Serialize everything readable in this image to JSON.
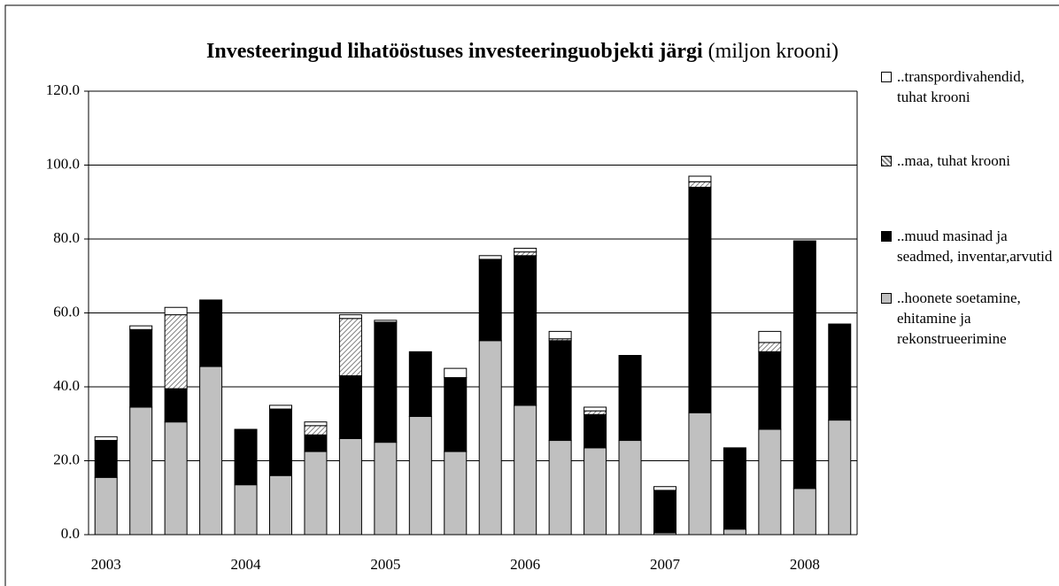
{
  "chart_data": {
    "type": "stacked_bar",
    "title": "Investeeringud lihatööstuses investeeringuobjekti järgi",
    "subtitle": "(miljon krooni)",
    "categories": [
      "2003",
      null,
      null,
      null,
      "2004",
      null,
      null,
      null,
      "2005",
      null,
      null,
      null,
      "2006",
      null,
      null,
      null,
      "2007",
      null,
      null,
      null,
      "2008",
      null
    ],
    "series": [
      {
        "name": "..hoonete soetamine, ehitamine ja rekonstrueerimine",
        "color": "#c0c0c0",
        "values": [
          15.5,
          34.5,
          30.5,
          45.5,
          13.5,
          16,
          22.5,
          26,
          25,
          32,
          22.5,
          52.5,
          35,
          25.5,
          23.5,
          25.5,
          0.5,
          33,
          1.5,
          28.5,
          12.5,
          31
        ]
      },
      {
        "name": "..muud masinad ja seadmed, inventar,arvutid",
        "color": "#000000",
        "values": [
          10,
          21,
          9,
          18,
          15,
          18,
          4.5,
          17,
          32.5,
          17.5,
          20,
          22,
          40.5,
          27,
          9,
          23,
          11.5,
          61,
          22,
          21,
          67,
          26
        ]
      },
      {
        "name": "..maa, tuhat krooni",
        "color": "#808080",
        "pattern": "hatch",
        "values": [
          0,
          0,
          20,
          0,
          0,
          0,
          2.5,
          15.5,
          0,
          0,
          0,
          0,
          1,
          0.5,
          1,
          0,
          0,
          1.5,
          0,
          2.5,
          0,
          0
        ]
      },
      {
        "name": "..transpordivahendid, tuhat krooni",
        "color": "#ffffff",
        "values": [
          1,
          1,
          2,
          0,
          0,
          1,
          1,
          1,
          0.5,
          0,
          2.5,
          1,
          1,
          2,
          1,
          0,
          1,
          1.5,
          0,
          3,
          0,
          0
        ]
      }
    ],
    "ylim": [
      0,
      120
    ],
    "yticks": [
      {
        "value": 0,
        "label": "0.0"
      },
      {
        "value": 20,
        "label": "20.0"
      },
      {
        "value": 40,
        "label": "40.0"
      },
      {
        "value": 60,
        "label": "60.0"
      },
      {
        "value": 80,
        "label": "80.0"
      },
      {
        "value": 100,
        "label": "100.0"
      },
      {
        "value": 120,
        "label": "120.0"
      }
    ],
    "grid": true,
    "legend": "right"
  }
}
